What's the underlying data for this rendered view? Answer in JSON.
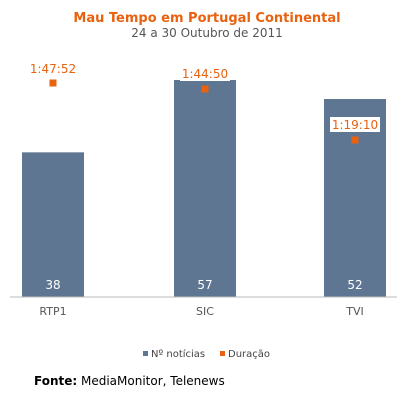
{
  "chart_data": {
    "type": "bar",
    "title": "Mau Tempo em Portugal Continental",
    "subtitle": "24 a 30 Outubro de 2011",
    "categories": [
      "RTP1",
      "SIC",
      "TVI"
    ],
    "series": [
      {
        "name": "Nº notícias",
        "type": "bar",
        "values": [
          38,
          57,
          52
        ],
        "labels": [
          "38",
          "57",
          "52"
        ]
      },
      {
        "name": "Duração",
        "type": "marker",
        "values": [
          "1:47:52",
          "1:44:50",
          "1:19:10"
        ],
        "labels": [
          "1:47:52",
          "1:44:50",
          "1:19:10"
        ]
      }
    ],
    "ylim": [
      0,
      57
    ],
    "grid": false,
    "legend": "bottom"
  },
  "colors": {
    "bar": "#5e7691",
    "marker": "#e8620f",
    "title": "#e8620f"
  },
  "source": {
    "label": "Fonte:",
    "text": " MediaMonitor, Telenews"
  }
}
